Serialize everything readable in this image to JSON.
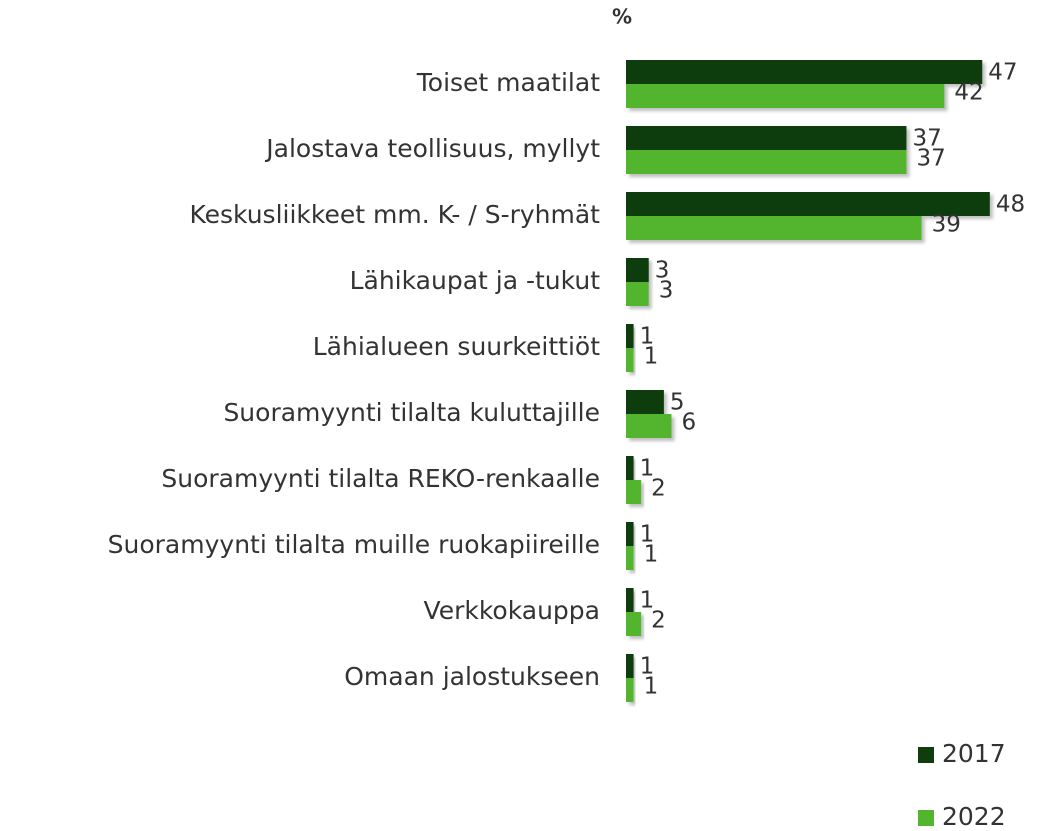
{
  "chart_data": {
    "type": "bar",
    "orientation": "horizontal",
    "title": "%",
    "categories": [
      "Toiset maatilat",
      "Jalostava teollisuus, myllyt",
      "Keskusliikkeet mm. K- / S-ryhmät",
      "Lähikaupat ja -tukut",
      "Lähialueen suurkeittiöt",
      "Suoramyynti tilalta kuluttajille",
      "Suoramyynti tilalta REKO-renkaalle",
      "Suoramyynti tilalta muille ruokapiireille",
      "Verkkokauppa",
      "Omaan jalostukseen"
    ],
    "series": [
      {
        "name": "2017",
        "color": "#0f3d0c",
        "values": [
          47,
          37,
          48,
          3,
          1,
          5,
          1,
          1,
          1,
          1
        ]
      },
      {
        "name": "2022",
        "color": "#52b52e",
        "values": [
          42,
          37,
          39,
          3,
          1,
          6,
          2,
          1,
          2,
          1
        ]
      }
    ],
    "xlim": [
      0,
      50
    ],
    "legend": "bottom-right"
  }
}
